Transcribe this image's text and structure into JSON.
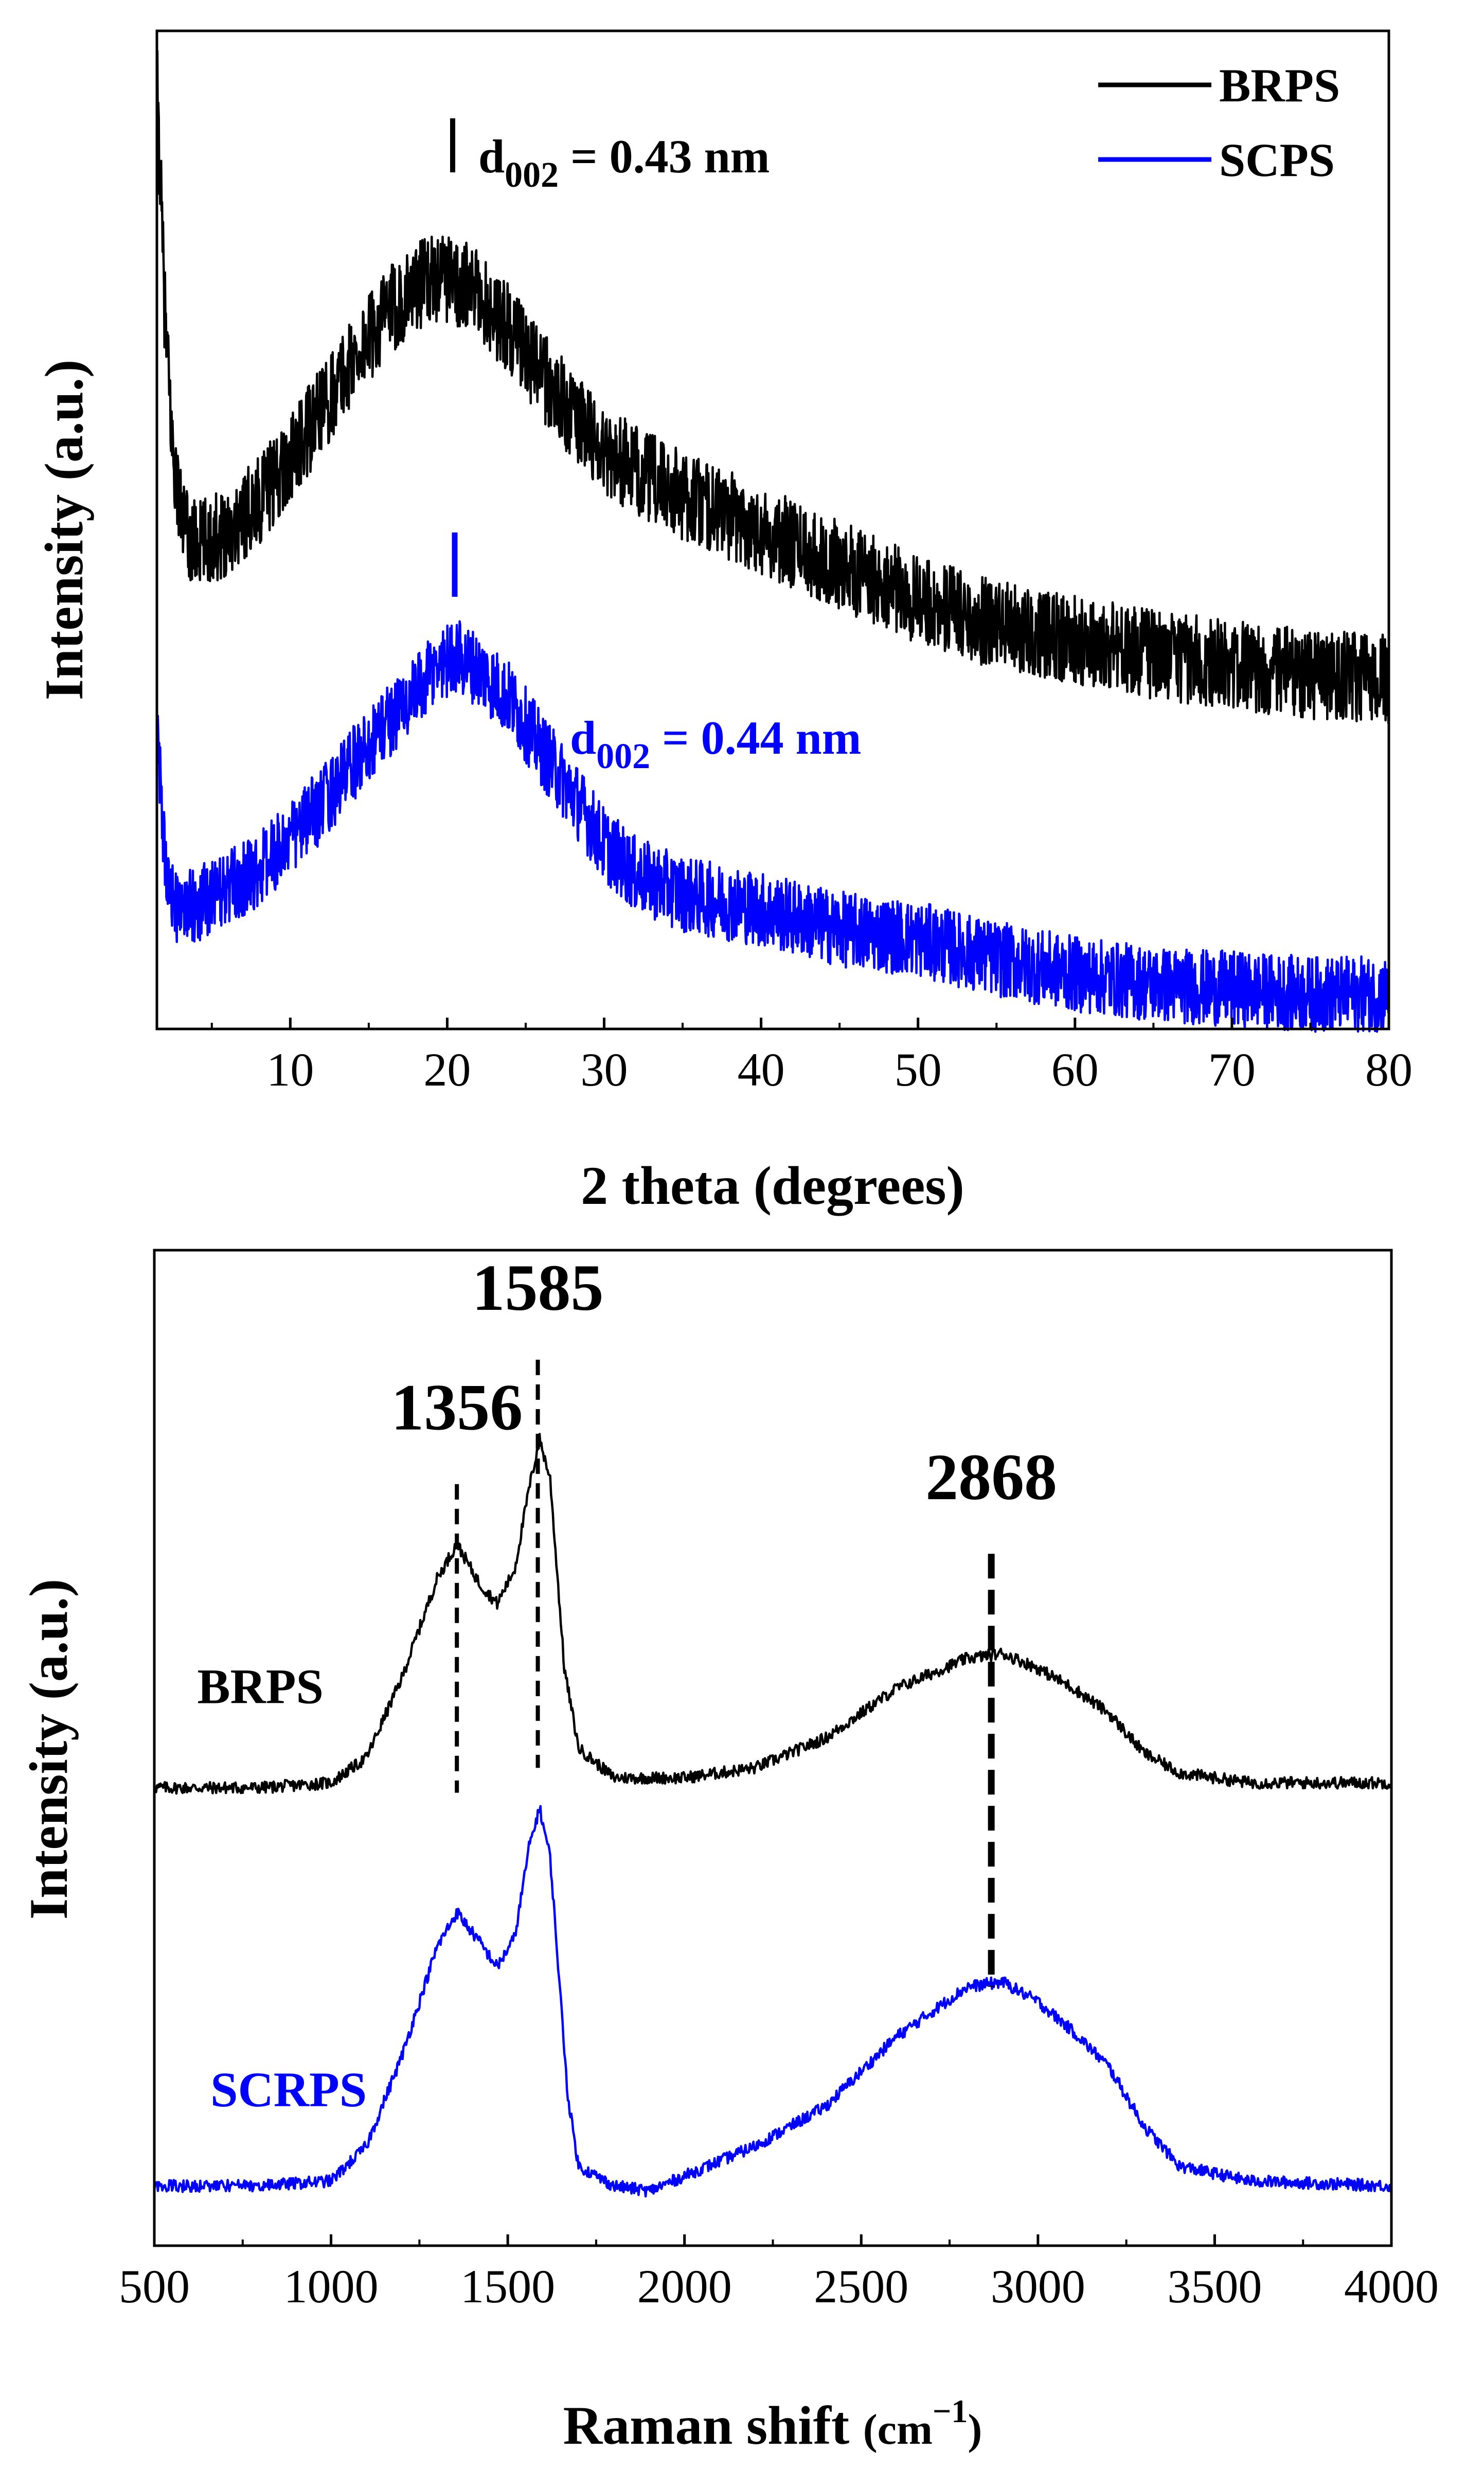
{
  "colors": {
    "series_a": "#000000",
    "series_b": "#0000ff",
    "axes": "#000000",
    "background": "#ffffff"
  },
  "chart_data": [
    {
      "id": "xrd",
      "type": "line",
      "title": "",
      "xlabel": "2 theta (degrees)",
      "ylabel": "Intensity (a.u.)",
      "xlim": [
        1.5,
        80
      ],
      "ylim": [
        0,
        1
      ],
      "xticks": [
        10,
        20,
        30,
        40,
        50,
        60,
        70,
        80
      ],
      "y_ticks_shown": false,
      "legend": {
        "placement": "top-right",
        "entries": [
          {
            "name": "BRPS",
            "color": "#000000"
          },
          {
            "name": "SCPS",
            "color": "#0000ff"
          }
        ]
      },
      "series": [
        {
          "name": "BRPS",
          "color": "#000000",
          "noise": 0.045,
          "points": [
            [
              1.5,
              0.95
            ],
            [
              2,
              0.72
            ],
            [
              2.5,
              0.58
            ],
            [
              3,
              0.52
            ],
            [
              3.5,
              0.49
            ],
            [
              4,
              0.485
            ],
            [
              5,
              0.49
            ],
            [
              6,
              0.5
            ],
            [
              8,
              0.53
            ],
            [
              10,
              0.57
            ],
            [
              12,
              0.62
            ],
            [
              14,
              0.67
            ],
            [
              16,
              0.715
            ],
            [
              18,
              0.745
            ],
            [
              19.5,
              0.755
            ],
            [
              20.5,
              0.75
            ],
            [
              22,
              0.735
            ],
            [
              24,
              0.7
            ],
            [
              26,
              0.655
            ],
            [
              28,
              0.615
            ],
            [
              30,
              0.58
            ],
            [
              32,
              0.56
            ],
            [
              35,
              0.535
            ],
            [
              40,
              0.5
            ],
            [
              45,
              0.465
            ],
            [
              50,
              0.43
            ],
            [
              55,
              0.405
            ],
            [
              60,
              0.39
            ],
            [
              65,
              0.375
            ],
            [
              70,
              0.365
            ],
            [
              75,
              0.355
            ],
            [
              80,
              0.35
            ]
          ]
        },
        {
          "name": "SCPS",
          "color": "#0000ff",
          "noise": 0.038,
          "points": [
            [
              1.5,
              0.3
            ],
            [
              2,
              0.17
            ],
            [
              2.5,
              0.13
            ],
            [
              3,
              0.12
            ],
            [
              4,
              0.125
            ],
            [
              6,
              0.14
            ],
            [
              8,
              0.16
            ],
            [
              10,
              0.19
            ],
            [
              12,
              0.225
            ],
            [
              14,
              0.265
            ],
            [
              16,
              0.305
            ],
            [
              18,
              0.335
            ],
            [
              19.5,
              0.365
            ],
            [
              20.5,
              0.375
            ],
            [
              22,
              0.36
            ],
            [
              24,
              0.33
            ],
            [
              26,
              0.28
            ],
            [
              28,
              0.235
            ],
            [
              30,
              0.185
            ],
            [
              32,
              0.155
            ],
            [
              35,
              0.135
            ],
            [
              40,
              0.12
            ],
            [
              45,
              0.1
            ],
            [
              50,
              0.09
            ],
            [
              55,
              0.07
            ],
            [
              60,
              0.055
            ],
            [
              65,
              0.045
            ],
            [
              70,
              0.04
            ],
            [
              75,
              0.035
            ],
            [
              80,
              0.035
            ]
          ]
        }
      ],
      "annotations": [
        {
          "id": "d002-brps",
          "x": 20.4,
          "y": 0.92,
          "color": "#000000",
          "main": "d",
          "sub": "002",
          "rest": " = 0.43 nm"
        },
        {
          "id": "d002-scps",
          "x": 20.4,
          "y": 0.5,
          "color": "#0000ff",
          "main": "d",
          "sub": "002",
          "rest": " = 0.44 nm"
        }
      ]
    },
    {
      "id": "raman",
      "type": "line",
      "title": "",
      "xlabel_main": "Raman shift ",
      "xlabel_unit": "(cm",
      "xlabel_sup": "−1",
      "xlabel_close": ")",
      "ylabel": "Intensity (a.u.)",
      "xlim": [
        500,
        4000
      ],
      "ylim": [
        0,
        1
      ],
      "xticks": [
        500,
        1000,
        1500,
        2000,
        2500,
        3000,
        3500,
        4000
      ],
      "y_ticks_shown": false,
      "peaks": [
        1356,
        1585,
        2868
      ],
      "series": [
        {
          "name": "BRPS",
          "color": "#000000",
          "label": "BRPS",
          "noise": 0.006,
          "points": [
            [
              500,
              0.46
            ],
            [
              800,
              0.46
            ],
            [
              1000,
              0.465
            ],
            [
              1100,
              0.49
            ],
            [
              1200,
              0.57
            ],
            [
              1300,
              0.67
            ],
            [
              1356,
              0.705
            ],
            [
              1420,
              0.665
            ],
            [
              1470,
              0.645
            ],
            [
              1520,
              0.68
            ],
            [
              1560,
              0.76
            ],
            [
              1590,
              0.81
            ],
            [
              1620,
              0.77
            ],
            [
              1660,
              0.58
            ],
            [
              1700,
              0.5
            ],
            [
              1800,
              0.47
            ],
            [
              2000,
              0.47
            ],
            [
              2200,
              0.48
            ],
            [
              2400,
              0.51
            ],
            [
              2600,
              0.56
            ],
            [
              2800,
              0.59
            ],
            [
              2900,
              0.595
            ],
            [
              3000,
              0.58
            ],
            [
              3100,
              0.56
            ],
            [
              3200,
              0.535
            ],
            [
              3300,
              0.495
            ],
            [
              3400,
              0.475
            ],
            [
              3600,
              0.465
            ],
            [
              4000,
              0.465
            ]
          ]
        },
        {
          "name": "SCRPS",
          "color": "#0000ff",
          "label": "SCRPS",
          "noise": 0.006,
          "points": [
            [
              500,
              0.06
            ],
            [
              800,
              0.06
            ],
            [
              1000,
              0.065
            ],
            [
              1100,
              0.1
            ],
            [
              1200,
              0.19
            ],
            [
              1300,
              0.3
            ],
            [
              1356,
              0.335
            ],
            [
              1420,
              0.305
            ],
            [
              1470,
              0.28
            ],
            [
              1520,
              0.31
            ],
            [
              1560,
              0.4
            ],
            [
              1590,
              0.44
            ],
            [
              1620,
              0.39
            ],
            [
              1670,
              0.15
            ],
            [
              1700,
              0.08
            ],
            [
              1800,
              0.06
            ],
            [
              1900,
              0.055
            ],
            [
              2000,
              0.07
            ],
            [
              2200,
              0.1
            ],
            [
              2400,
              0.14
            ],
            [
              2600,
              0.21
            ],
            [
              2800,
              0.26
            ],
            [
              2900,
              0.265
            ],
            [
              3000,
              0.245
            ],
            [
              3100,
              0.215
            ],
            [
              3200,
              0.18
            ],
            [
              3300,
              0.12
            ],
            [
              3400,
              0.08
            ],
            [
              3600,
              0.065
            ],
            [
              4000,
              0.06
            ]
          ]
        }
      ],
      "peak_labels": [
        {
          "x": 1356,
          "text": "1356",
          "label_y": 0.82,
          "line_top": 0.765,
          "line_bottom": 0.455,
          "heavy": false
        },
        {
          "x": 1585,
          "text": "1585",
          "label_y": 0.94,
          "line_top": 0.89,
          "line_bottom": 0.48,
          "heavy": false
        },
        {
          "x": 2868,
          "text": "2868",
          "label_y": 0.75,
          "line_top": 0.695,
          "line_bottom": 0.26,
          "heavy": true
        }
      ],
      "series_labels": [
        {
          "text": "BRPS",
          "x": 800,
          "y": 0.545,
          "color": "#000000"
        },
        {
          "text": "SCRPS",
          "x": 880,
          "y": 0.14,
          "color": "#0000ff"
        }
      ]
    }
  ]
}
